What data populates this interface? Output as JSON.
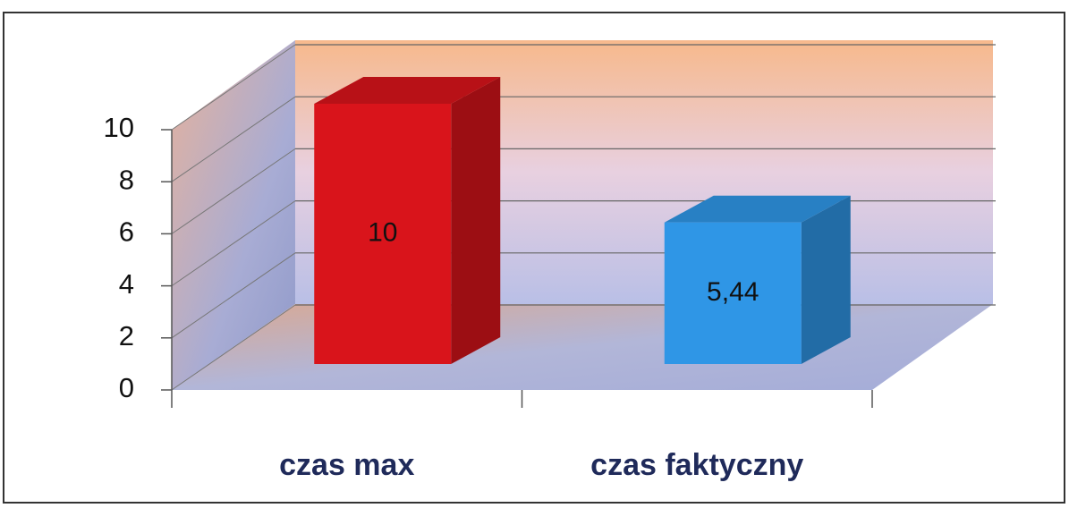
{
  "chart_data": {
    "type": "bar3d",
    "categories": [
      "czas max",
      "czas faktyczny"
    ],
    "values": [
      10,
      5.44
    ],
    "value_labels": [
      "10",
      "5,44"
    ],
    "colors": [
      "#d9141b",
      "#2f96e6"
    ],
    "ylim": [
      0,
      10
    ],
    "yticks": [
      0,
      2,
      4,
      6,
      8,
      10
    ],
    "grid": true
  }
}
